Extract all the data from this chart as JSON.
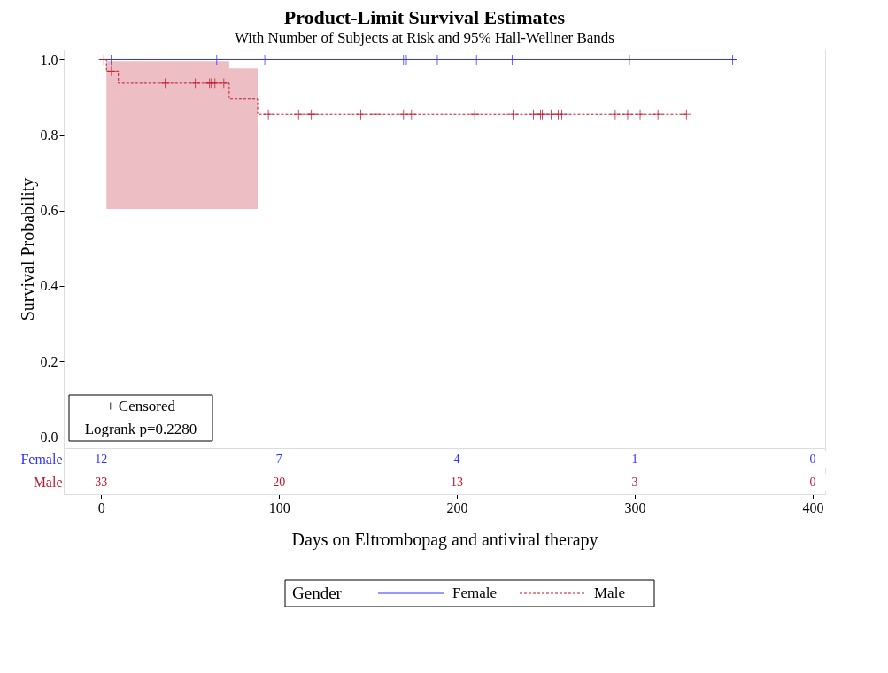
{
  "chart_data": [
    {
      "type": "step",
      "title": "Product-Limit Survival Estimates",
      "subtitle": "With Number of Subjects at Risk and 95% Hall-Wellner Bands",
      "xlabel": "Days on Eltrombopag and antiviral therapy",
      "ylabel": "Survival Probability",
      "xlim": [
        -21,
        407
      ],
      "xticks": [
        0,
        100,
        200,
        300,
        400
      ],
      "ylim": [
        -0.03,
        1.027
      ],
      "yticks": [
        {
          "value": 0,
          "label": "0.0"
        },
        0.2,
        0.4,
        0.6,
        0.8,
        {
          "value": 1,
          "label": "1.0"
        }
      ],
      "grid": false,
      "legend": "bottom",
      "legend_title": "Gender",
      "marker": "none",
      "annotations": [
        "+ Censored",
        "Logrank p=0.2280"
      ],
      "series": [
        {
          "name": "Female",
          "color": "#3333ff",
          "line_style": "solid",
          "x": [
            0,
            355
          ],
          "values": [
            1.0,
            1.0
          ]
        },
        {
          "name": "Male",
          "color": "#c0182f",
          "line_style": "dashed",
          "x": [
            0,
            3,
            9.7,
            72,
            88,
            329
          ],
          "values": [
            1.0,
            0.97,
            0.938,
            0.896,
            0.855,
            0.855
          ],
          "lower": [
            null,
            0.604,
            0.604,
            0.604,
            0.604,
            null
          ],
          "upper": [
            null,
            0.996,
            0.996,
            0.977,
            0.977,
            null
          ]
        },
        {
          "type": "scatter",
          "marker": "cross",
          "color": "#3333ff",
          "x": [
            5.7,
            19,
            28,
            65,
            92,
            170,
            171.6,
            189,
            211,
            231,
            297,
            355
          ],
          "values": [
            1,
            1,
            1,
            1,
            1,
            1,
            1,
            1,
            1,
            1,
            1,
            1
          ]
        },
        {
          "type": "scatter",
          "marker": "cross",
          "color": "#c0182f",
          "x": [
            1.5,
            5.8,
            36,
            53,
            61,
            62,
            64,
            69,
            94,
            111,
            118,
            119,
            146,
            154,
            170,
            174.5,
            210,
            232,
            243,
            247,
            248,
            253,
            257,
            259,
            289,
            296,
            303,
            313,
            329
          ],
          "values": [
            1.0,
            0.97,
            0.938,
            0.938,
            0.938,
            0.938,
            0.938,
            0.938,
            0.855,
            0.855,
            0.855,
            0.855,
            0.855,
            0.855,
            0.855,
            0.855,
            0.855,
            0.855,
            0.855,
            0.855,
            0.855,
            0.855,
            0.855,
            0.855,
            0.855,
            0.855,
            0.855,
            0.855,
            0.855
          ]
        }
      ]
    },
    {
      "type": "heatmap",
      "tick_labels": "y",
      "data_labels": true,
      "categories": [
        "0",
        "100",
        "200",
        "300",
        "400"
      ],
      "y_categories": [
        "Female",
        "Male"
      ],
      "colors": [
        "#3333ff",
        "#c0182f"
      ],
      "cells": [
        [
          12,
          7,
          4,
          1,
          0
        ],
        [
          33,
          20,
          13,
          3,
          0
        ]
      ]
    }
  ]
}
